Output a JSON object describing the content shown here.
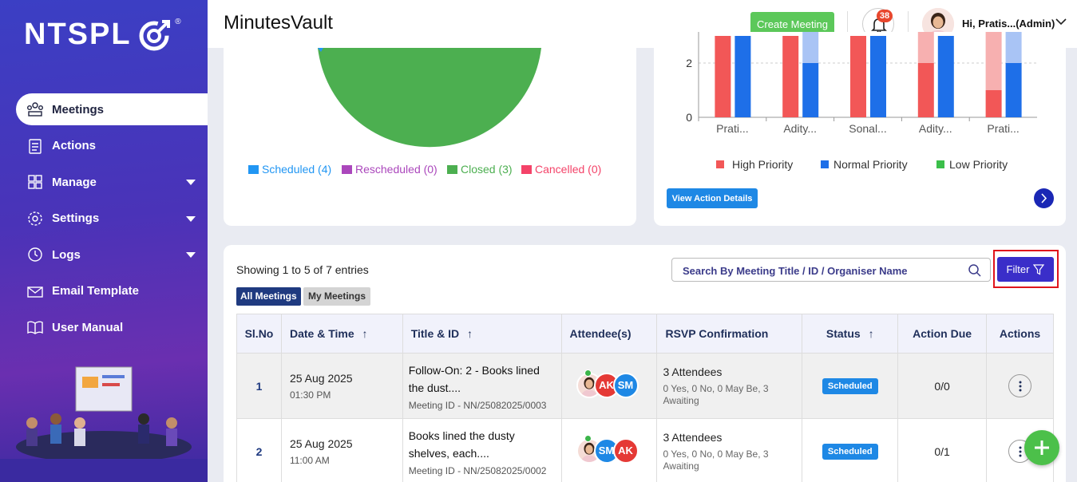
{
  "brand": {
    "logo_text": "NTSPL",
    "reg_mark": "®"
  },
  "sidebar": {
    "items": [
      {
        "label": "Meetings",
        "icon": "meeting-people-icon",
        "active": true
      },
      {
        "label": "Actions",
        "icon": "clipboard-icon"
      },
      {
        "label": "Manage",
        "icon": "grid-icon",
        "has_submenu": true
      },
      {
        "label": "Settings",
        "icon": "gear-icon",
        "has_submenu": true
      },
      {
        "label": "Logs",
        "icon": "history-icon",
        "has_submenu": true
      },
      {
        "label": "Email Template",
        "icon": "envelope-icon"
      },
      {
        "label": "User Manual",
        "icon": "book-icon"
      }
    ]
  },
  "header": {
    "app_title": "MinutesVault",
    "create_meeting_label": "Create Meeting",
    "notifications_count": "38",
    "user_greeting": "Hi, Pratis...(Admin)"
  },
  "pie_card": {
    "legend": [
      {
        "label": "Scheduled (4)",
        "color": "#2196f3"
      },
      {
        "label": "Rescheduled (0)",
        "color": "#ab47bc"
      },
      {
        "label": "Closed (3)",
        "color": "#4caf50"
      },
      {
        "label": "Cancelled (0)",
        "color": "#f44369"
      }
    ]
  },
  "bar_card": {
    "legend": [
      {
        "label": "High Priority",
        "color": "#f25757"
      },
      {
        "label": "Normal Priority",
        "color": "#1e6fe8"
      },
      {
        "label": "Low Priority",
        "color": "#3bbf4a"
      }
    ],
    "view_button_label": "View Action Details"
  },
  "chart_data": {
    "type": "bar",
    "categories": [
      "Prati...",
      "Adity...",
      "Sonal...",
      "Adity...",
      "Prati..."
    ],
    "y_ticks": [
      "0",
      "2"
    ],
    "series": [
      {
        "name": "High Priority",
        "values": [
          3,
          3,
          3,
          2,
          1
        ]
      },
      {
        "name": "Normal Priority",
        "values": [
          3,
          2,
          3,
          3,
          2
        ]
      }
    ]
  },
  "table_card": {
    "showing_text": "Showing 1 to 5 of 7 entries",
    "tabs": {
      "all": "All Meetings",
      "mine": "My Meetings"
    },
    "search_placeholder": "Search By Meeting Title / ID / Organiser Name",
    "filter_label": "Filter",
    "columns": [
      "Sl.No",
      "Date & Time",
      "Title & ID",
      "Attendee(s)",
      "RSVP Confirmation",
      "Status",
      "Action Due",
      "Actions"
    ],
    "rows": [
      {
        "no": "1",
        "date": "25 Aug 2025",
        "time": "01:30 PM",
        "title": "Follow-On: 2 - Books lined the dust....",
        "meeting_id": "Meeting ID - NN/25082025/0003",
        "attendees": [
          {
            "initials": "AK",
            "color": "#e53935"
          },
          {
            "initials": "SM",
            "color": "#1e88e5"
          }
        ],
        "rsvp": "3 Attendees",
        "rsvp_detail": "0 Yes, 0 No, 0 May Be, 3 Awaiting",
        "status": "Scheduled",
        "action_due": "0/0"
      },
      {
        "no": "2",
        "date": "25 Aug 2025",
        "time": "11:00 AM",
        "title": "Books lined the dusty shelves, each....",
        "meeting_id": "Meeting ID - NN/25082025/0002",
        "attendees": [
          {
            "initials": "SM",
            "color": "#1e88e5"
          },
          {
            "initials": "AK",
            "color": "#e53935"
          }
        ],
        "rsvp": "3 Attendees",
        "rsvp_detail": "0 Yes, 0 No, 0 May Be, 3 Awaiting",
        "status": "Scheduled",
        "action_due": "0/1"
      }
    ]
  }
}
